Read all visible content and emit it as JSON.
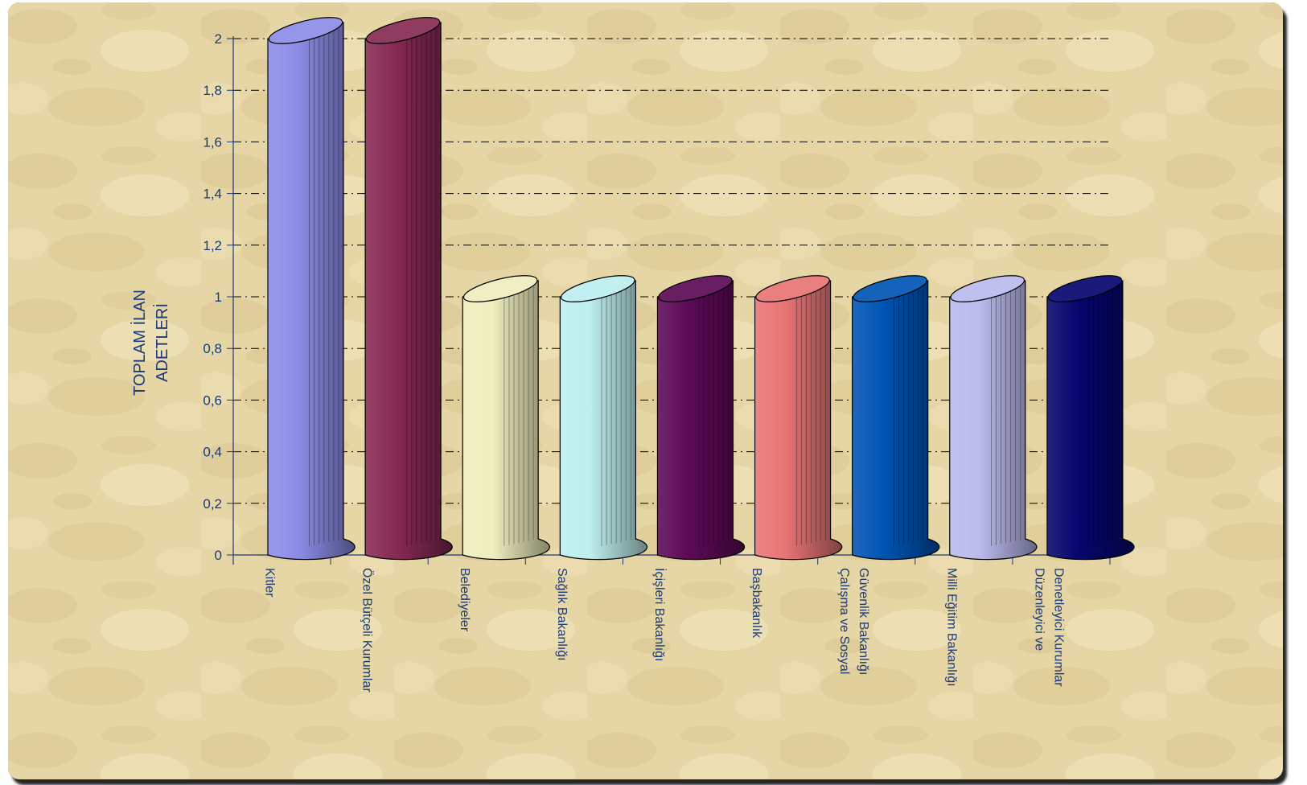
{
  "chart_data": {
    "type": "bar",
    "ylabel": [
      "TOPLAM İLAN",
      "ADETLERİ"
    ],
    "ylim": [
      0,
      2
    ],
    "yticks": [
      "0",
      "0,2",
      "0,4",
      "0,6",
      "0,8",
      "1",
      "1,2",
      "1,4",
      "1,6",
      "1,8",
      "2"
    ],
    "grid": true,
    "categories": [
      [
        "Kitler"
      ],
      [
        "Özel Bütçeli Kurumlar"
      ],
      [
        "Belediyeler"
      ],
      [
        "Sağlık Bakanlığı"
      ],
      [
        "İçişleri Bakanlığı"
      ],
      [
        "Başbakanlık"
      ],
      [
        "Çalışma ve Sosyal",
        "Güvenlik Bakanlığı"
      ],
      [
        "Milli Eğitim Bakanlığı"
      ],
      [
        "Düzenleyici ve",
        "Denetleyici Kurumlar"
      ]
    ],
    "values": [
      2,
      2,
      1,
      1,
      1,
      1,
      1,
      1,
      1
    ],
    "colors": [
      "#8c8ce8",
      "#862a52",
      "#eeeebe",
      "#bdeeee",
      "#5c0a56",
      "#e87474",
      "#0054b4",
      "#babaee",
      "#06066e"
    ]
  },
  "style": {
    "background": "#e6d6a6",
    "text_color": "#1a3a78",
    "axis_color": "#1a3a78",
    "grid_color": "#000000"
  }
}
